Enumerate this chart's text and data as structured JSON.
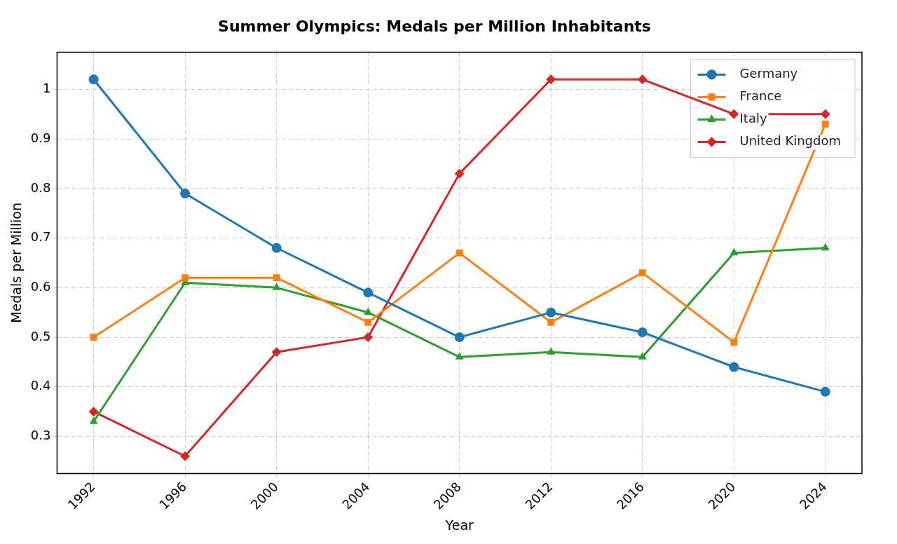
{
  "chart_data": {
    "type": "line",
    "title": "Summer Olympics: Medals per Million Inhabitants",
    "xlabel": "Year",
    "ylabel": "Medals per Million",
    "x": [
      1992,
      1996,
      2000,
      2004,
      2008,
      2012,
      2016,
      2020,
      2024
    ],
    "series": [
      {
        "name": "Germany",
        "color": "#1f77b4",
        "marker": "circle",
        "values": [
          1.02,
          0.79,
          0.68,
          0.59,
          0.5,
          0.55,
          0.51,
          0.44,
          0.39
        ]
      },
      {
        "name": "France",
        "color": "#ff7f0e",
        "marker": "square",
        "values": [
          0.5,
          0.62,
          0.62,
          0.53,
          0.67,
          0.53,
          0.63,
          0.49,
          0.93
        ]
      },
      {
        "name": "Italy",
        "color": "#2ca02c",
        "marker": "triangle",
        "values": [
          0.33,
          0.61,
          0.6,
          0.55,
          0.46,
          0.47,
          0.46,
          0.67,
          0.68
        ]
      },
      {
        "name": "United Kingdom",
        "color": "#d62728",
        "marker": "diamond",
        "values": [
          0.35,
          0.26,
          0.47,
          0.5,
          0.83,
          1.02,
          1.02,
          0.95,
          0.95
        ]
      }
    ],
    "xlim": [
      1990.4,
      2025.6
    ],
    "xticks": [
      1992,
      1996,
      2000,
      2004,
      2008,
      2012,
      2016,
      2020,
      2024
    ],
    "ylim": [
      0.225,
      1.075
    ],
    "yticks": [
      0.3,
      0.4,
      0.5,
      0.6,
      0.7,
      0.8,
      0.9,
      1.0
    ],
    "grid": true,
    "legend": "top right",
    "line_style": "solid"
  }
}
